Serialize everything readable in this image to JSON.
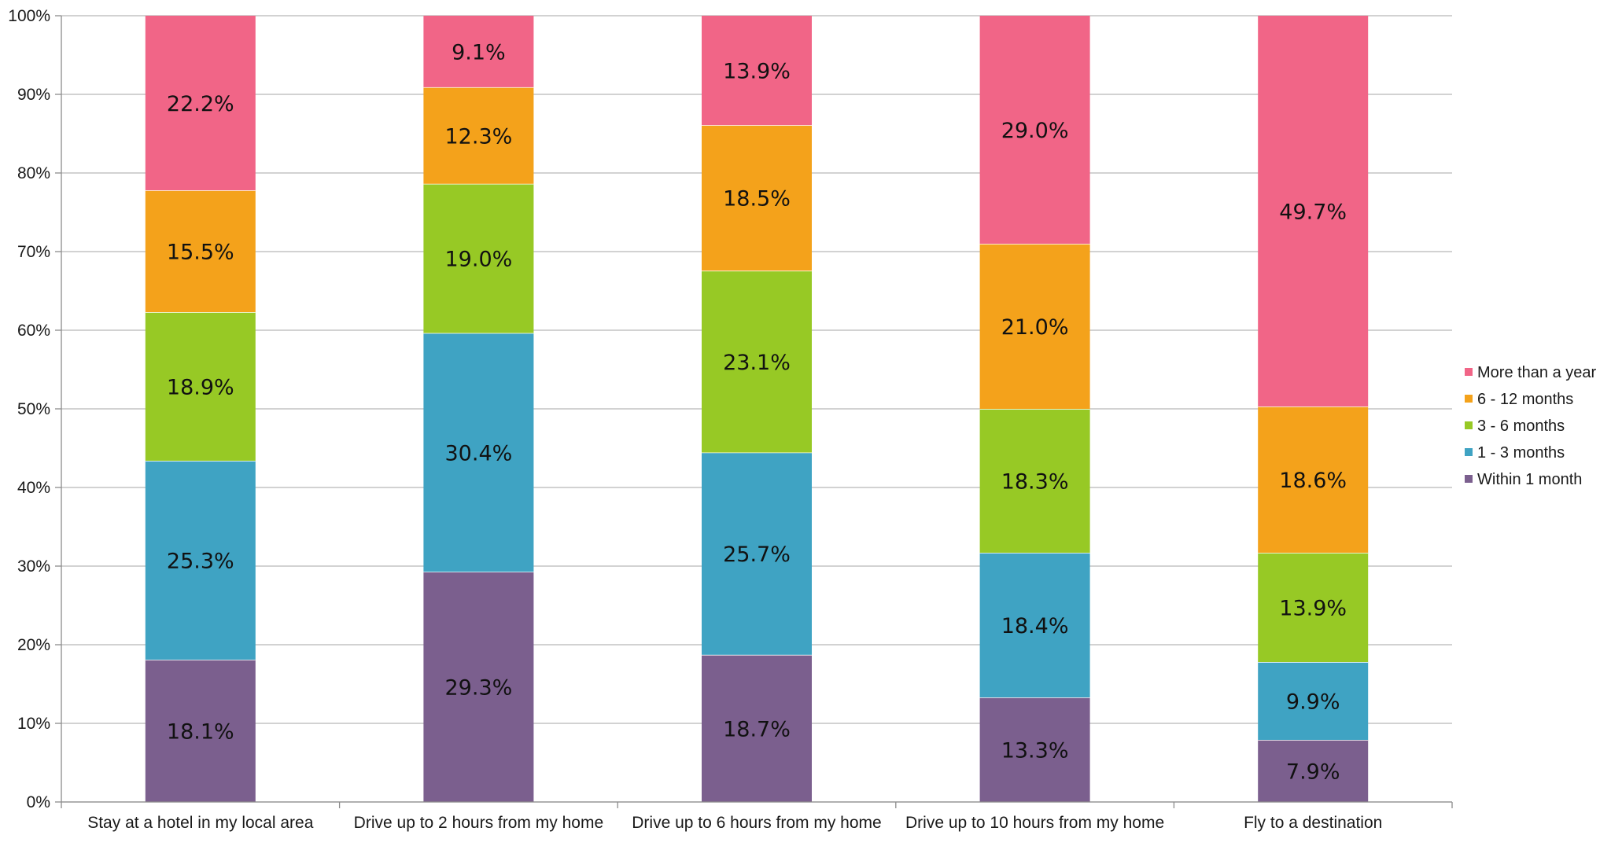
{
  "chart_data": {
    "type": "bar",
    "stacked": true,
    "percent_stacked": true,
    "title": "",
    "xlabel": "",
    "ylabel": "",
    "ylim": [
      0,
      100
    ],
    "y_ticks": [
      "0%",
      "10%",
      "20%",
      "30%",
      "40%",
      "50%",
      "60%",
      "70%",
      "80%",
      "90%",
      "100%"
    ],
    "grid": true,
    "legend_position": "right",
    "categories": [
      "Stay at a hotel in my local area",
      "Drive up to 2 hours from my home",
      "Drive up to 6 hours from my home",
      "Drive up to 10 hours from my home",
      "Fly to a destination"
    ],
    "series": [
      {
        "name": "Within 1 month",
        "color": "#7b5f8e",
        "values": [
          18.1,
          29.3,
          18.7,
          13.3,
          7.9
        ],
        "labels": [
          "18.1%",
          "29.3%",
          "18.7%",
          "13.3%",
          "7.9%"
        ]
      },
      {
        "name": "1 - 3 months",
        "color": "#3fa3c3",
        "values": [
          25.3,
          30.4,
          25.7,
          18.4,
          9.9
        ],
        "labels": [
          "25.3%",
          "30.4%",
          "25.7%",
          "18.4%",
          "9.9%"
        ]
      },
      {
        "name": "3 - 6 months",
        "color": "#97c925",
        "values": [
          18.9,
          19.0,
          23.1,
          18.3,
          13.9
        ],
        "labels": [
          "18.9%",
          "19.0%",
          "23.1%",
          "18.3%",
          "13.9%"
        ]
      },
      {
        "name": "6 - 12 months",
        "color": "#f4a21b",
        "values": [
          15.5,
          12.3,
          18.5,
          21.0,
          18.6
        ],
        "labels": [
          "15.5%",
          "12.3%",
          "18.5%",
          "21.0%",
          "18.6%"
        ]
      },
      {
        "name": "More than a year",
        "color": "#f16587",
        "values": [
          22.2,
          9.1,
          13.9,
          29.0,
          49.7
        ],
        "labels": [
          "22.2%",
          "9.1%",
          "13.9%",
          "29.0%",
          "49.7%"
        ]
      }
    ]
  }
}
